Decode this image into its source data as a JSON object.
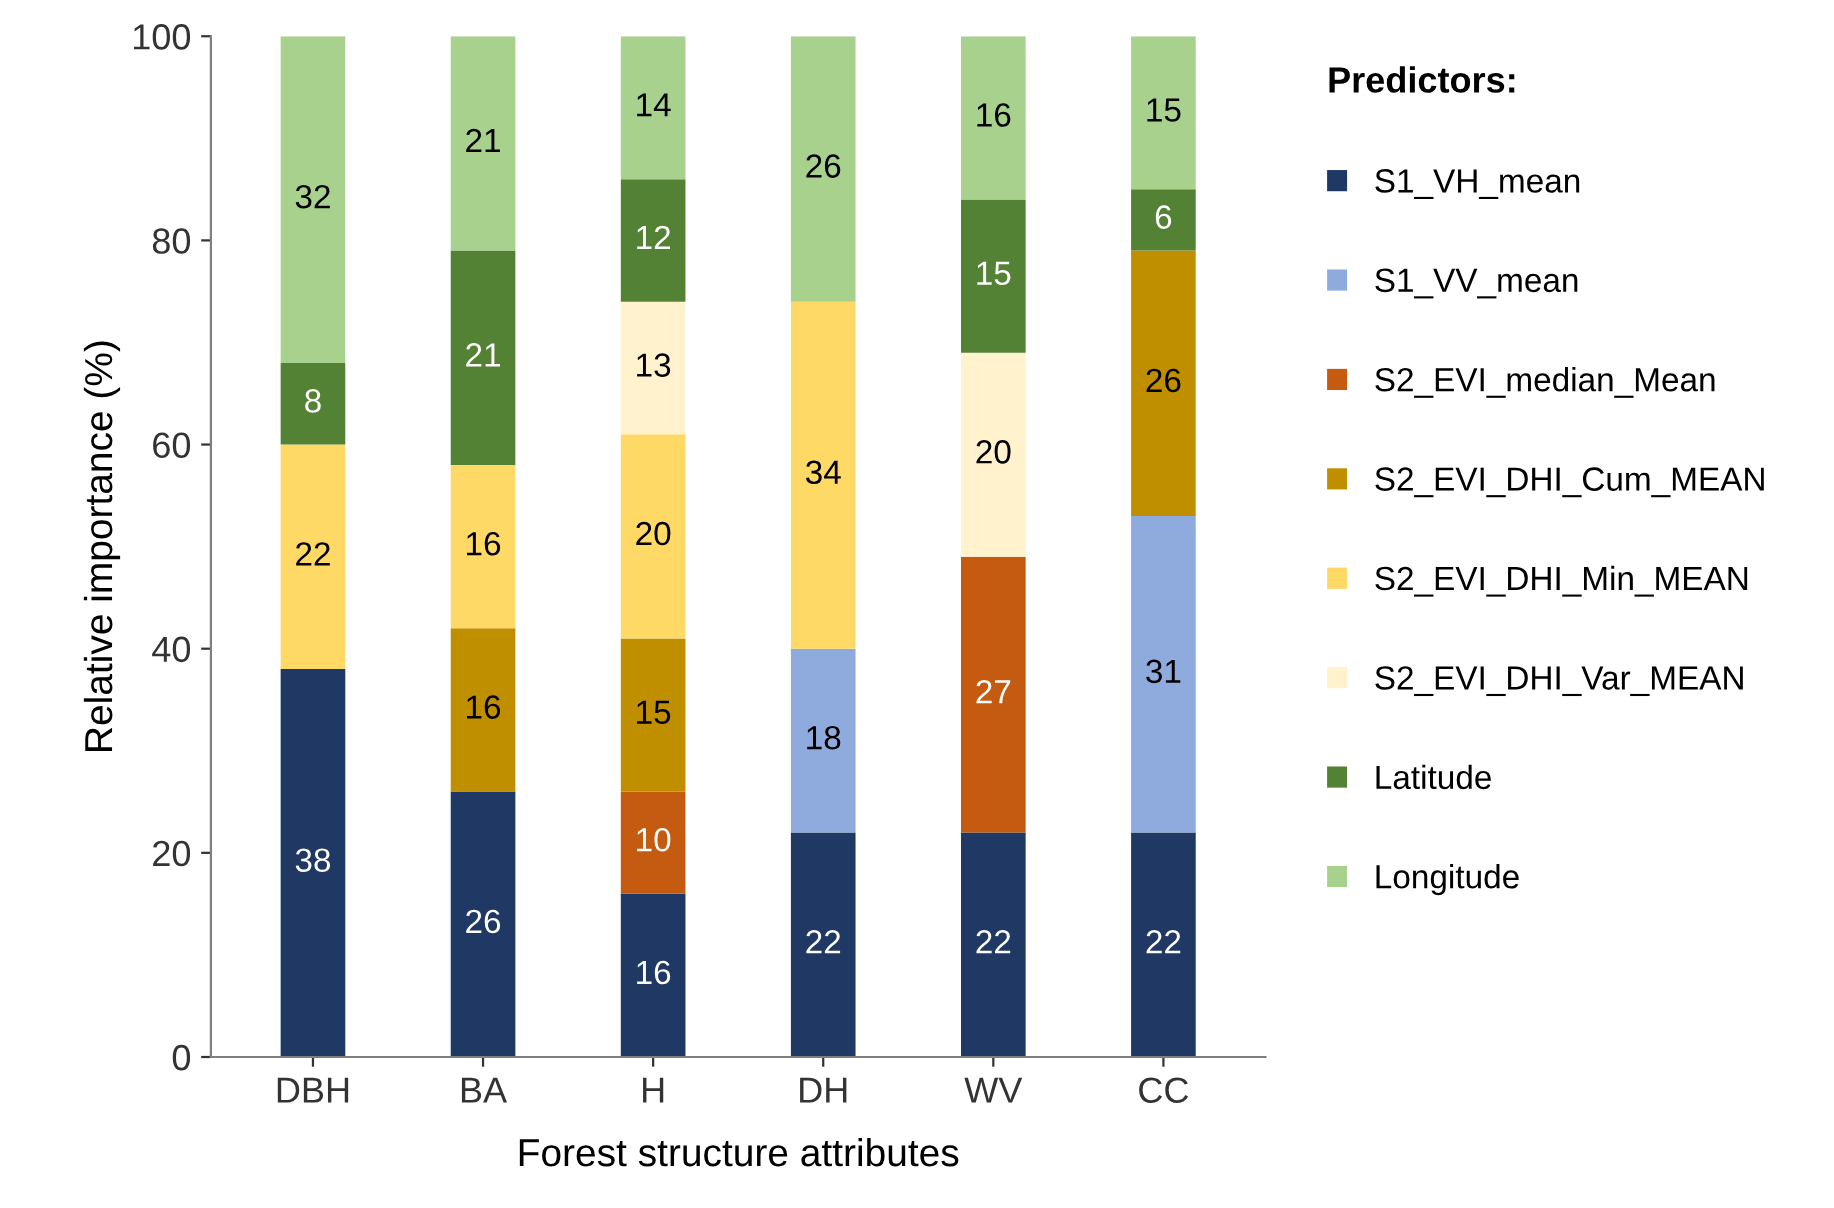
{
  "chart_data": {
    "type": "bar",
    "stacked": true,
    "xlabel": "Forest structure attributes",
    "ylabel": "Relative importance (%)",
    "legend_title": "Predictors:",
    "legend": "right",
    "categories": [
      "DBH",
      "BA",
      "H",
      "DH",
      "WV",
      "CC"
    ],
    "ylim": [
      0,
      100
    ],
    "yticks": [
      0,
      20,
      40,
      60,
      80,
      100
    ],
    "grid": false,
    "data_labels": true,
    "series": [
      {
        "name": "S1_VH_mean",
        "color": "#1f3864",
        "values": [
          38,
          26,
          16,
          22,
          22,
          22
        ]
      },
      {
        "name": "S1_VV_mean",
        "color": "#8faadc",
        "values": [
          null,
          null,
          null,
          18,
          null,
          31
        ]
      },
      {
        "name": "S2_EVI_median_Mean",
        "color": "#c55a11",
        "values": [
          null,
          null,
          10,
          null,
          27,
          null
        ]
      },
      {
        "name": "S2_EVI_DHI_Cum_MEAN",
        "color": "#bf8f00",
        "values": [
          null,
          16,
          15,
          null,
          null,
          26
        ]
      },
      {
        "name": "S2_EVI_DHI_Min_MEAN",
        "color": "#ffd966",
        "values": [
          22,
          16,
          20,
          34,
          null,
          null
        ]
      },
      {
        "name": "S2_EVI_DHI_Var_MEAN",
        "color": "#fff2cc",
        "values": [
          null,
          null,
          13,
          null,
          20,
          null
        ]
      },
      {
        "name": "Latitude",
        "color": "#548235",
        "values": [
          8,
          21,
          12,
          null,
          15,
          6
        ]
      },
      {
        "name": "Longitude",
        "color": "#a9d18e",
        "values": [
          32,
          21,
          14,
          26,
          16,
          15
        ]
      }
    ]
  }
}
